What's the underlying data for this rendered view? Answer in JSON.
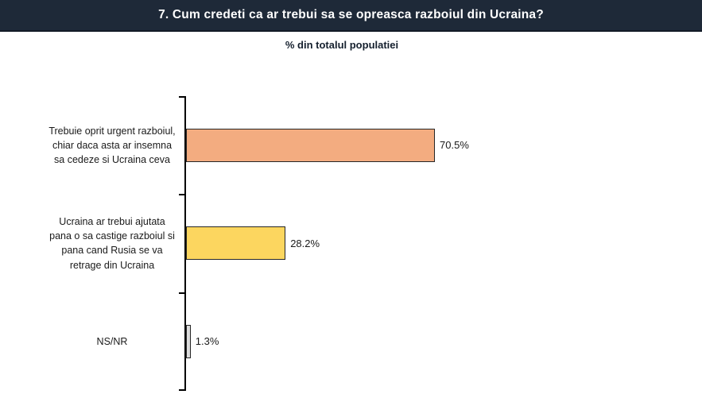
{
  "header": {
    "title": "7. Cum credeti ca ar trebui sa se opreasca razboiul din Ucraina?"
  },
  "chart_data": {
    "type": "bar",
    "orientation": "horizontal",
    "title": "7. Cum credeti ca ar trebui sa se opreasca razboiul din Ucraina?",
    "subtitle": "% din totalul populatiei",
    "categories": [
      "Trebuie oprit urgent razboiul, chiar daca asta ar insemna sa cedeze si Ucraina ceva",
      "Ucraina ar trebui ajutata pana o sa castige razboiul si pana cand Rusia se va retrage din Ucraina",
      "NS/NR"
    ],
    "values": [
      70.5,
      28.2,
      1.3
    ],
    "value_labels": [
      "70.5%",
      "28.2%",
      "1.3%"
    ],
    "xlim": [
      0,
      100
    ],
    "bar_colors": [
      "#F3AC80",
      "#FCD65F",
      "#DCDCDC"
    ],
    "grid": false,
    "legend": false,
    "axis_color": "#000000"
  },
  "colors": {
    "header_bg": "#1E2938",
    "header_text": "#FFFFFF",
    "text": "#1A1A1A",
    "bar_border": "#262626"
  }
}
